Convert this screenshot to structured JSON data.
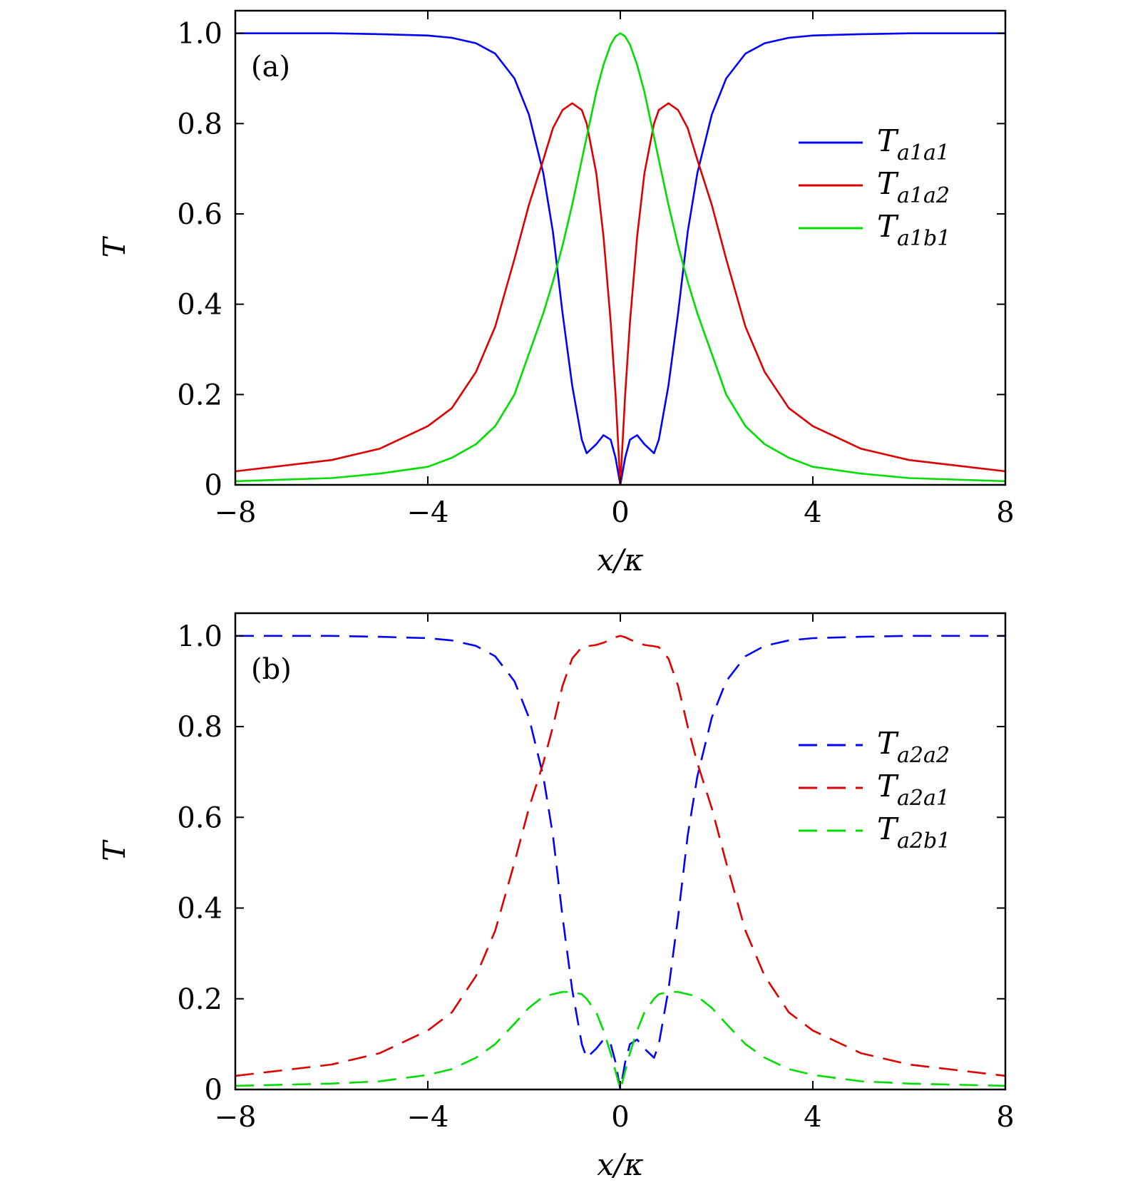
{
  "chart_data": [
    {
      "type": "line",
      "panel_label": "(a)",
      "xlabel": "x/κ",
      "ylabel": "T",
      "xlim": [
        -8,
        8
      ],
      "ylim": [
        0,
        1.05
      ],
      "xticks": [
        -8,
        -4,
        0,
        4,
        8
      ],
      "xtick_labels": [
        "−8",
        "−4",
        "0",
        "4",
        "8"
      ],
      "yticks": [
        0,
        0.2,
        0.4,
        0.6,
        0.8,
        1.0
      ],
      "ytick_labels": [
        "0",
        "0.2",
        "0.4",
        "0.6",
        "0.8",
        "1.0"
      ],
      "grid": false,
      "legend_position": "right",
      "line_style": "solid",
      "x": [
        -8,
        -6,
        -5,
        -4,
        -3.5,
        -3,
        -2.6,
        -2.2,
        -1.9,
        -1.6,
        -1.4,
        -1.2,
        -1.0,
        -0.8,
        -0.7,
        -0.5,
        -0.35,
        -0.2,
        -0.1,
        0,
        0.1,
        0.2,
        0.35,
        0.5,
        0.7,
        0.8,
        1.0,
        1.2,
        1.4,
        1.6,
        1.9,
        2.2,
        2.6,
        3,
        3.5,
        4,
        5,
        6,
        8
      ],
      "series": [
        {
          "name": "T_{a1a1}",
          "legend_main": "T",
          "legend_sub": "a1a1",
          "color": "#0000ff",
          "values": [
            1.0,
            1.0,
            0.998,
            0.995,
            0.99,
            0.978,
            0.955,
            0.9,
            0.82,
            0.69,
            0.56,
            0.38,
            0.22,
            0.1,
            0.07,
            0.09,
            0.11,
            0.1,
            0.06,
            0.0,
            0.06,
            0.1,
            0.11,
            0.09,
            0.07,
            0.1,
            0.22,
            0.38,
            0.56,
            0.69,
            0.82,
            0.9,
            0.955,
            0.978,
            0.99,
            0.995,
            0.998,
            1.0,
            1.0
          ]
        },
        {
          "name": "T_{a1a2}",
          "legend_main": "T",
          "legend_sub": "a1a2",
          "color": "#dd0000",
          "values": [
            0.03,
            0.055,
            0.08,
            0.13,
            0.17,
            0.25,
            0.35,
            0.5,
            0.62,
            0.72,
            0.79,
            0.83,
            0.845,
            0.83,
            0.8,
            0.69,
            0.55,
            0.36,
            0.2,
            0.0,
            0.2,
            0.36,
            0.55,
            0.69,
            0.8,
            0.83,
            0.845,
            0.83,
            0.79,
            0.72,
            0.62,
            0.5,
            0.35,
            0.25,
            0.17,
            0.13,
            0.08,
            0.055,
            0.03
          ]
        },
        {
          "name": "T_{a1b1}",
          "legend_main": "T",
          "legend_sub": "a1b1",
          "color": "#00dd00",
          "values": [
            0.008,
            0.015,
            0.025,
            0.04,
            0.06,
            0.09,
            0.13,
            0.2,
            0.29,
            0.38,
            0.45,
            0.53,
            0.62,
            0.72,
            0.77,
            0.87,
            0.93,
            0.975,
            0.993,
            1.0,
            0.993,
            0.975,
            0.93,
            0.87,
            0.77,
            0.72,
            0.62,
            0.53,
            0.45,
            0.38,
            0.29,
            0.2,
            0.13,
            0.09,
            0.06,
            0.04,
            0.025,
            0.015,
            0.008
          ]
        }
      ]
    },
    {
      "type": "line",
      "panel_label": "(b)",
      "xlabel": "x/κ",
      "ylabel": "T",
      "xlim": [
        -8,
        8
      ],
      "ylim": [
        0,
        1.05
      ],
      "xticks": [
        -8,
        -4,
        0,
        4,
        8
      ],
      "xtick_labels": [
        "−8",
        "−4",
        "0",
        "4",
        "8"
      ],
      "yticks": [
        0,
        0.2,
        0.4,
        0.6,
        0.8,
        1.0
      ],
      "ytick_labels": [
        "0",
        "0.2",
        "0.4",
        "0.6",
        "0.8",
        "1.0"
      ],
      "grid": false,
      "legend_position": "right",
      "line_style": "dashed",
      "x": [
        -8,
        -6,
        -5,
        -4,
        -3.5,
        -3,
        -2.6,
        -2.2,
        -1.9,
        -1.6,
        -1.4,
        -1.2,
        -1.0,
        -0.8,
        -0.7,
        -0.5,
        -0.35,
        -0.2,
        -0.1,
        0,
        0.1,
        0.2,
        0.35,
        0.5,
        0.7,
        0.8,
        1.0,
        1.2,
        1.4,
        1.6,
        1.9,
        2.2,
        2.6,
        3,
        3.5,
        4,
        5,
        6,
        8
      ],
      "series": [
        {
          "name": "T_{a2a2}",
          "legend_main": "T",
          "legend_sub": "a2a2",
          "color": "#0000ff",
          "values": [
            1.0,
            1.0,
            0.998,
            0.995,
            0.99,
            0.978,
            0.955,
            0.9,
            0.82,
            0.69,
            0.56,
            0.38,
            0.22,
            0.1,
            0.07,
            0.09,
            0.11,
            0.1,
            0.06,
            0.0,
            0.06,
            0.1,
            0.11,
            0.09,
            0.07,
            0.1,
            0.22,
            0.38,
            0.56,
            0.69,
            0.82,
            0.9,
            0.955,
            0.978,
            0.99,
            0.995,
            0.998,
            1.0,
            1.0
          ]
        },
        {
          "name": "T_{a2a1}",
          "legend_main": "T",
          "legend_sub": "a2a1",
          "color": "#dd0000",
          "values": [
            0.03,
            0.055,
            0.08,
            0.13,
            0.17,
            0.25,
            0.35,
            0.5,
            0.62,
            0.72,
            0.8,
            0.89,
            0.95,
            0.975,
            0.977,
            0.98,
            0.985,
            0.992,
            0.997,
            1.0,
            0.997,
            0.992,
            0.985,
            0.98,
            0.977,
            0.975,
            0.95,
            0.89,
            0.8,
            0.72,
            0.62,
            0.5,
            0.35,
            0.25,
            0.17,
            0.13,
            0.08,
            0.055,
            0.03
          ]
        },
        {
          "name": "T_{a2b1}",
          "legend_main": "T",
          "legend_sub": "a2b1",
          "color": "#00dd00",
          "values": [
            0.008,
            0.013,
            0.018,
            0.032,
            0.045,
            0.07,
            0.1,
            0.145,
            0.18,
            0.205,
            0.21,
            0.215,
            0.215,
            0.21,
            0.2,
            0.17,
            0.13,
            0.08,
            0.04,
            0.0,
            0.04,
            0.08,
            0.13,
            0.17,
            0.2,
            0.21,
            0.215,
            0.215,
            0.21,
            0.205,
            0.18,
            0.145,
            0.1,
            0.07,
            0.045,
            0.032,
            0.018,
            0.013,
            0.008
          ]
        }
      ]
    }
  ]
}
